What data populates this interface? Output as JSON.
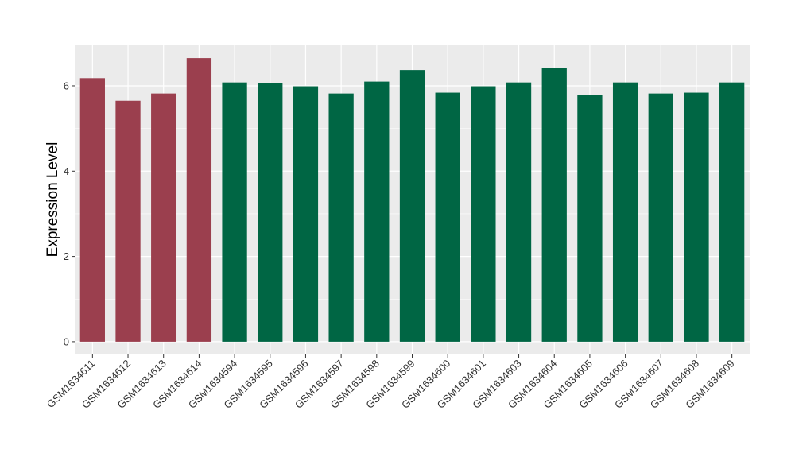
{
  "chart_data": {
    "type": "bar",
    "ylabel": "Expression Level",
    "xlabel": "",
    "ylim": [
      -0.3,
      6.95
    ],
    "yticks": [
      0,
      2,
      4,
      6
    ],
    "grid": true,
    "colors": {
      "group_a": "#9b3f4e",
      "group_b": "#006644",
      "panel": "#ebebeb",
      "grid": "#ffffff"
    },
    "categories": [
      "GSM1634611",
      "GSM1634612",
      "GSM1634613",
      "GSM1634614",
      "GSM1634594",
      "GSM1634595",
      "GSM1634596",
      "GSM1634597",
      "GSM1634598",
      "GSM1634599",
      "GSM1634600",
      "GSM1634601",
      "GSM1634603",
      "GSM1634604",
      "GSM1634605",
      "GSM1634606",
      "GSM1634607",
      "GSM1634608",
      "GSM1634609"
    ],
    "values": [
      6.18,
      5.65,
      5.82,
      6.65,
      6.08,
      6.06,
      5.99,
      5.82,
      6.1,
      6.37,
      5.84,
      5.99,
      6.08,
      6.42,
      5.79,
      6.08,
      5.82,
      5.84,
      6.08
    ],
    "groups": [
      "a",
      "a",
      "a",
      "a",
      "b",
      "b",
      "b",
      "b",
      "b",
      "b",
      "b",
      "b",
      "b",
      "b",
      "b",
      "b",
      "b",
      "b",
      "b"
    ]
  }
}
